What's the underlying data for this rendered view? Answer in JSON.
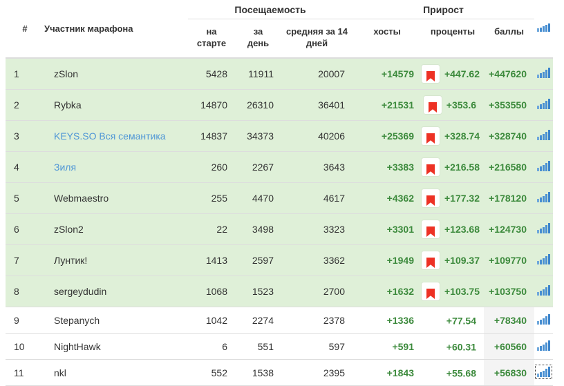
{
  "table": {
    "columns": {
      "rank": "#",
      "participant": "Участник марафона",
      "group_visits": "Посещаемость",
      "group_growth": "Прирост",
      "start": "на старте",
      "day": "за день",
      "avg14": "средняя за 14 дней",
      "hosts": "хосты",
      "percent": "проценты",
      "points": "баллы"
    },
    "rows": [
      {
        "rank": "1",
        "name": "zSlon",
        "is_link": false,
        "start": "5428",
        "day": "11911",
        "avg14": "20007",
        "hosts": "+14579",
        "bookmark": true,
        "percent": "+447.62",
        "points": "+447620",
        "highlighted": true,
        "points_gray": false,
        "icon_focused": false
      },
      {
        "rank": "2",
        "name": "Rybka",
        "is_link": false,
        "start": "14870",
        "day": "26310",
        "avg14": "36401",
        "hosts": "+21531",
        "bookmark": true,
        "percent": "+353.6",
        "points": "+353550",
        "highlighted": true,
        "points_gray": false,
        "icon_focused": false
      },
      {
        "rank": "3",
        "name": "KEYS.SO Вся семантика",
        "is_link": true,
        "start": "14837",
        "day": "34373",
        "avg14": "40206",
        "hosts": "+25369",
        "bookmark": true,
        "percent": "+328.74",
        "points": "+328740",
        "highlighted": true,
        "points_gray": false,
        "icon_focused": false
      },
      {
        "rank": "4",
        "name": "Зиля",
        "is_link": true,
        "start": "260",
        "day": "2267",
        "avg14": "3643",
        "hosts": "+3383",
        "bookmark": true,
        "percent": "+216.58",
        "points": "+216580",
        "highlighted": true,
        "points_gray": false,
        "icon_focused": false
      },
      {
        "rank": "5",
        "name": "Webmaestro",
        "is_link": false,
        "start": "255",
        "day": "4470",
        "avg14": "4617",
        "hosts": "+4362",
        "bookmark": true,
        "percent": "+177.32",
        "points": "+178120",
        "highlighted": true,
        "points_gray": false,
        "icon_focused": false
      },
      {
        "rank": "6",
        "name": "zSlon2",
        "is_link": false,
        "start": "22",
        "day": "3498",
        "avg14": "3323",
        "hosts": "+3301",
        "bookmark": true,
        "percent": "+123.68",
        "points": "+124730",
        "highlighted": true,
        "points_gray": false,
        "icon_focused": false
      },
      {
        "rank": "7",
        "name": "Лунтик!",
        "is_link": false,
        "start": "1413",
        "day": "2597",
        "avg14": "3362",
        "hosts": "+1949",
        "bookmark": true,
        "percent": "+109.37",
        "points": "+109770",
        "highlighted": true,
        "points_gray": false,
        "icon_focused": false
      },
      {
        "rank": "8",
        "name": "sergeydudin",
        "is_link": false,
        "start": "1068",
        "day": "1523",
        "avg14": "2700",
        "hosts": "+1632",
        "bookmark": true,
        "percent": "+103.75",
        "points": "+103750",
        "highlighted": true,
        "points_gray": false,
        "icon_focused": false
      },
      {
        "rank": "9",
        "name": "Stepanych",
        "is_link": false,
        "start": "1042",
        "day": "2274",
        "avg14": "2378",
        "hosts": "+1336",
        "bookmark": false,
        "percent": "+77.54",
        "points": "+78340",
        "highlighted": false,
        "points_gray": true,
        "icon_focused": false
      },
      {
        "rank": "10",
        "name": "NightHawk",
        "is_link": false,
        "start": "6",
        "day": "551",
        "avg14": "597",
        "hosts": "+591",
        "bookmark": false,
        "percent": "+60.31",
        "points": "+60560",
        "highlighted": false,
        "points_gray": true,
        "icon_focused": false
      },
      {
        "rank": "11",
        "name": "nkl",
        "is_link": false,
        "start": "552",
        "day": "1538",
        "avg14": "2395",
        "hosts": "+1843",
        "bookmark": false,
        "percent": "+55.68",
        "points": "+56830",
        "highlighted": false,
        "points_gray": true,
        "icon_focused": true
      }
    ]
  },
  "icons": {
    "header_chart": "bar-chart-icon",
    "row_chart": "bar-chart-icon",
    "bookmark": "bookmark-icon"
  },
  "colors": {
    "row_highlight": "#dff0d8",
    "positive": "#3c8a3c",
    "link": "#4f96d6",
    "bookmark_red": "#ed3124",
    "chart_blue": "#4a90d2",
    "gray_cell": "#f4f4f4",
    "border": "#dddddd",
    "header_text": "#333333"
  }
}
